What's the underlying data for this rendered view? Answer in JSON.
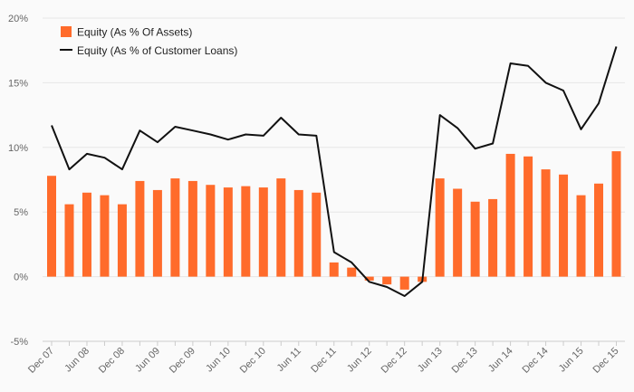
{
  "chart_data": {
    "type": "bar",
    "title": "",
    "xlabel": "",
    "ylabel": "",
    "ylim": [
      -5,
      20
    ],
    "yticks": [
      -5,
      0,
      5,
      10,
      15,
      20
    ],
    "ytick_labels": [
      "-5%",
      "0%",
      "5%",
      "10%",
      "15%",
      "20%"
    ],
    "grid": true,
    "legend_position": "top-left",
    "x_tick_labels": [
      "Dec 07",
      "Jun 08",
      "Dec 08",
      "Jun 09",
      "Dec 09",
      "Jun 10",
      "Dec 10",
      "Jun 11",
      "Dec 11",
      "Jun 12",
      "Dec 12",
      "Jun 13",
      "Dec 13",
      "Jun 14",
      "Dec 14",
      "Jun 15",
      "Dec 15"
    ],
    "categories": [
      "Dec 07",
      "Mar 08",
      "Jun 08",
      "Sep 08",
      "Dec 08",
      "Mar 09",
      "Jun 09",
      "Sep 09",
      "Dec 09",
      "Mar 10",
      "Jun 10",
      "Sep 10",
      "Dec 10",
      "Mar 11",
      "Jun 11",
      "Sep 11",
      "Dec 11",
      "Mar 12",
      "Jun 12",
      "Sep 12",
      "Dec 12",
      "Mar 13",
      "Jun 13",
      "Sep 13",
      "Dec 13",
      "Mar 14",
      "Jun 14",
      "Sep 14",
      "Dec 14",
      "Mar 15",
      "Jun 15",
      "Sep 15",
      "Dec 15"
    ],
    "series": [
      {
        "name": "Equity (As % Of Assets)",
        "type": "bar",
        "color": "#ff6b2b",
        "values": [
          7.8,
          5.6,
          6.5,
          6.3,
          5.6,
          7.4,
          6.7,
          7.6,
          7.4,
          7.1,
          6.9,
          7.0,
          6.9,
          7.6,
          6.7,
          6.5,
          1.1,
          0.7,
          -0.3,
          -0.6,
          -1.0,
          -0.4,
          7.6,
          6.8,
          5.8,
          6.0,
          9.5,
          9.3,
          8.3,
          7.9,
          6.3,
          7.2,
          9.7
        ]
      },
      {
        "name": "Equity (As % of Customer Loans)",
        "type": "line",
        "color": "#111111",
        "values": [
          11.7,
          8.3,
          9.5,
          9.2,
          8.3,
          11.3,
          10.4,
          11.6,
          11.3,
          11.0,
          10.6,
          11.0,
          10.9,
          12.3,
          11.0,
          10.9,
          1.9,
          1.1,
          -0.4,
          -0.8,
          -1.5,
          -0.4,
          12.5,
          11.5,
          9.9,
          10.3,
          16.5,
          16.3,
          15.0,
          14.4,
          11.4,
          13.4,
          17.8
        ]
      }
    ]
  }
}
